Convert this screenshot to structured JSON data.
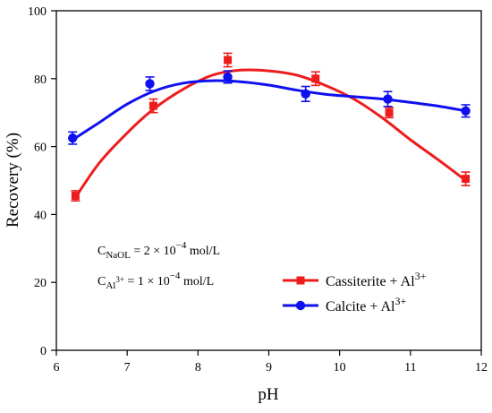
{
  "chart_data": {
    "type": "scatter",
    "xlabel": "pH",
    "ylabel": "Recovery (%)",
    "xlim": [
      6,
      12
    ],
    "ylim": [
      0,
      100
    ],
    "x_ticks": [
      6,
      7,
      8,
      9,
      10,
      11,
      12
    ],
    "y_ticks": [
      0,
      20,
      40,
      60,
      80,
      100
    ],
    "grid": false,
    "legend_position": "bottom-right",
    "series": [
      {
        "name": "Cassiterite + Al3+",
        "color": "#ee1c1c",
        "marker": "square",
        "x": [
          6.27,
          7.37,
          8.42,
          9.66,
          10.7,
          11.78
        ],
        "y": [
          45.5,
          72,
          85.5,
          80,
          70,
          50.5
        ],
        "error": [
          1.5,
          2,
          2,
          2,
          1.5,
          2
        ],
        "fit": {
          "x": [
            6.27,
            6.6,
            7.0,
            7.37,
            7.8,
            8.2,
            8.6,
            9.0,
            9.4,
            9.8,
            10.2,
            10.6,
            11.0,
            11.4,
            11.78
          ],
          "y": [
            45,
            55,
            64,
            71,
            77,
            81,
            82.5,
            82.3,
            81,
            78,
            74,
            68.5,
            62,
            56,
            50
          ]
        }
      },
      {
        "name": "Calcite + Al3+",
        "color": "#1010ee",
        "marker": "circle",
        "x": [
          6.23,
          7.32,
          8.42,
          9.52,
          10.68,
          11.78
        ],
        "y": [
          62.5,
          78.5,
          80.5,
          75.5,
          74,
          70.5
        ],
        "error": [
          1.8,
          2,
          1.8,
          2.2,
          2.2,
          1.8
        ],
        "fit": {
          "x": [
            6.23,
            6.6,
            7.0,
            7.4,
            7.8,
            8.2,
            8.6,
            9.0,
            9.4,
            9.8,
            10.2,
            10.6,
            11.0,
            11.4,
            11.78
          ],
          "y": [
            62,
            67,
            72.5,
            76.5,
            78.7,
            79.4,
            79.1,
            78.1,
            76.6,
            75.4,
            74.7,
            74,
            73,
            71.9,
            70.5
          ]
        }
      }
    ],
    "legend": [
      {
        "base": "Cassiterite + Al",
        "sup": "3+"
      },
      {
        "base": "Calcite + Al",
        "sup": "3+"
      }
    ],
    "annotations": [
      {
        "prefix": "C",
        "sub": "NaOL",
        "middle": " = 2 × 10",
        "sup": "−4",
        "suffix": " mol/L"
      },
      {
        "prefix": "C",
        "sub": "Al",
        "subsup": "3+",
        "middle": " = 1 × 10",
        "sup": "−4",
        "suffix": " mol/L"
      }
    ]
  }
}
